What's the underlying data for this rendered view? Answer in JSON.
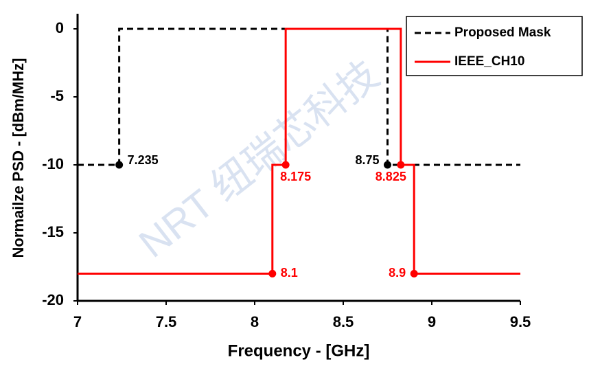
{
  "chart_data": {
    "type": "line",
    "x_label": "Frequency - [GHz]",
    "y_label": "Normailze PSD - [dBm/MHz]",
    "watermark": "NRT 纽瑞芯科技",
    "xlim": [
      7,
      9.5
    ],
    "ylim": [
      -20,
      0
    ],
    "xticks": [
      7,
      7.5,
      8,
      8.5,
      9,
      9.5
    ],
    "yticks": [
      0,
      -5,
      -10,
      -15,
      -20
    ],
    "grid": false,
    "legend": "top-right",
    "series": [
      {
        "name": "Proposed Mask",
        "color": "#000000",
        "dash": true,
        "x": [
          7,
          7.235,
          7.235,
          8.75,
          8.75,
          9.5
        ],
        "values": [
          -10,
          -10,
          0,
          0,
          -10,
          -10
        ]
      },
      {
        "name": "IEEE_CH10",
        "color": "#ff0000",
        "dash": false,
        "x": [
          7,
          8.1,
          8.1,
          8.175,
          8.175,
          8.825,
          8.825,
          8.9,
          8.9,
          9.5
        ],
        "values": [
          -18,
          -18,
          -10,
          -10,
          0,
          0,
          -10,
          -10,
          -18,
          -18
        ]
      }
    ],
    "annotations": [
      {
        "x": 7.235,
        "y": -10,
        "color": "#000000"
      },
      {
        "x": 8.75,
        "y": -10,
        "color": "#000000"
      },
      {
        "x": 8.175,
        "y": -10,
        "color": "#ff0000"
      },
      {
        "x": 8.825,
        "y": -10,
        "color": "#ff0000"
      },
      {
        "x": 8.1,
        "y": -18,
        "color": "#ff0000"
      },
      {
        "x": 8.9,
        "y": -18,
        "color": "#ff0000"
      }
    ]
  }
}
